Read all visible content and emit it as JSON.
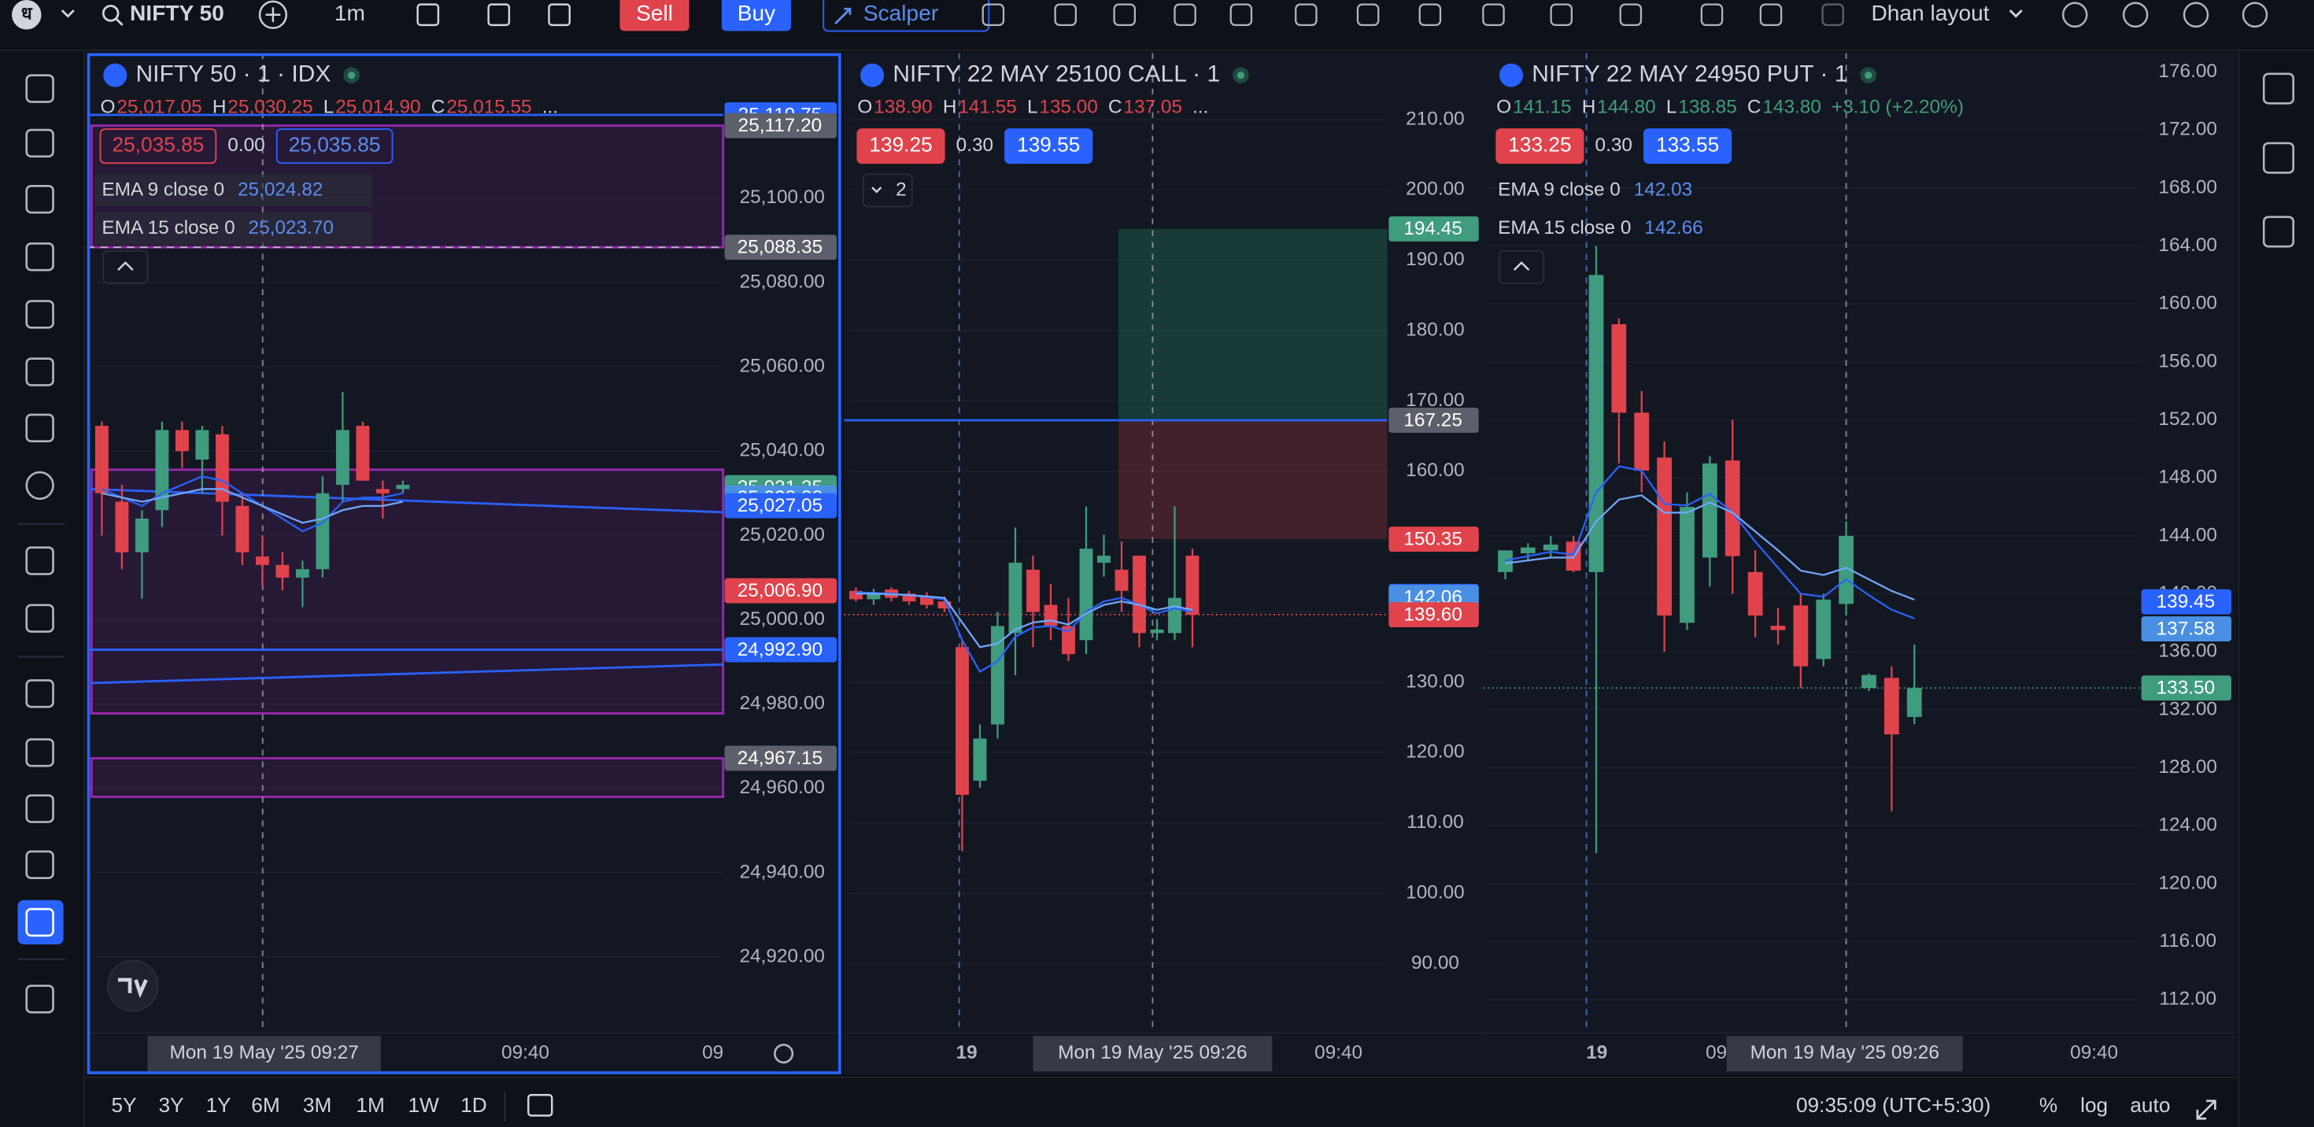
{
  "toolbar": {
    "logo": "ध",
    "symbol": "NIFTY 50",
    "interval": "1m",
    "sell": "Sell",
    "buy": "Buy",
    "scalper": "Scalper",
    "layout": "Dhan layout"
  },
  "panels": [
    {
      "title": "NIFTY 50 · 1 · IDX",
      "ohlc": [
        {
          "label": "O",
          "value": "25,017.05"
        },
        {
          "label": "H",
          "value": "25,030.25"
        },
        {
          "label": "L",
          "value": "25,014.90"
        },
        {
          "label": "C",
          "value": "25,015.55"
        }
      ],
      "ohlc_color": "#e0434c",
      "ohlc_more": "...",
      "sell_price": "25,035.85",
      "spread": "0.00",
      "buy_price": "25,035.85",
      "indicators": [
        {
          "name": "EMA 9 close 0",
          "value": "25,024.82"
        },
        {
          "name": "EMA 15 close 0",
          "value": "25,023.70"
        }
      ],
      "ylim": [
        24902,
        25133
      ],
      "yticks": [
        {
          "value": 25100,
          "label": "25,100.00"
        },
        {
          "value": 25080,
          "label": "25,080.00"
        },
        {
          "value": 25060,
          "label": "25,060.00"
        },
        {
          "value": 25040,
          "label": "25,040.00"
        },
        {
          "value": 25020,
          "label": "25,020.00"
        },
        {
          "value": 25000,
          "label": "25,000.00"
        },
        {
          "value": 24980,
          "label": "24,980.00"
        },
        {
          "value": 24960,
          "label": "24,960.00"
        },
        {
          "value": 24940,
          "label": "24,940.00"
        },
        {
          "value": 24920,
          "label": "24,920.00"
        }
      ],
      "zones": [
        {
          "from": 25117.2,
          "to": 25088.35
        },
        {
          "from": 25035.6,
          "to": 24977.8
        },
        {
          "from": 24967.15,
          "to": 24958
        }
      ],
      "zone_color": "#9c27b0",
      "trend_lines": [
        {
          "from": 24985,
          "to": 24989.4
        },
        {
          "from": 25031,
          "to": 25025.5
        }
      ],
      "trend_color": "#2962ff",
      "price_tags": [
        {
          "value": 25119.75,
          "label": "25,119.75",
          "color": "#2962ff",
          "line": "solid",
          "line_color": "#2962ff"
        },
        {
          "value": 25117.2,
          "label": "25,117.20",
          "color": "#5d606b"
        },
        {
          "value": 25088.35,
          "label": "25,088.35",
          "color": "#5d606b",
          "line": "dashed",
          "line_color": "#b2b5be"
        },
        {
          "value": 25031.35,
          "label": "25,031.35",
          "color": "#3f9c7e"
        },
        {
          "value": 25028.88,
          "label": "25,028.88",
          "color": "#4a90e2"
        },
        {
          "value": 25027.05,
          "label": "25,027.05",
          "color": "#2962ff"
        },
        {
          "value": 25006.9,
          "label": "25,006.90",
          "color": "#e0434c"
        },
        {
          "value": 24992.9,
          "label": "24,992.90",
          "color": "#2962ff",
          "line": "solid",
          "line_color": "#2962ff"
        },
        {
          "value": 24967.15,
          "label": "24,967.15",
          "color": "#5d606b"
        }
      ],
      "x_labels": [
        "09:40",
        "09"
      ],
      "crosshair_time": "Mon 19 May '25  09:27",
      "up_color": "#3f9c7e",
      "down_color": "#e0434c",
      "candles": {
        "open": [
          25046,
          25028,
          25016,
          25026,
          25045,
          25038,
          25044,
          25027,
          25015,
          25013,
          25010,
          25012,
          25032,
          25046,
          25031,
          25031
        ],
        "high": [
          25047,
          25032,
          25026,
          25047,
          25047,
          25046,
          25046,
          25030,
          25020,
          25016,
          25014,
          25034,
          25054,
          25047,
          25033,
          25033
        ],
        "low": [
          25020,
          25012,
          25005,
          25022,
          25036,
          25030,
          25020,
          25013,
          25008,
          25007,
          25003,
          25010,
          25028,
          25033,
          25024,
          25030
        ],
        "close": [
          25030,
          25016,
          25024,
          25045,
          25040,
          25045,
          25028,
          25016,
          25013,
          25010,
          25012,
          25030,
          25045,
          25033,
          25030,
          25032
        ]
      },
      "ema_lines": [
        {
          "color": "#2962ff",
          "values": [
            25031,
            25029,
            25027,
            25030,
            25032,
            25034,
            25033,
            25030,
            25027,
            25024,
            25021,
            25023,
            25028,
            25029,
            25029,
            25030
          ]
        },
        {
          "color": "#6fa8ff",
          "values": [
            25030,
            25029,
            25028,
            25029,
            25030,
            25031,
            25031,
            25029,
            25027,
            25025,
            25023,
            25024,
            25026,
            25027,
            25027,
            25028
          ]
        }
      ]
    },
    {
      "title": "NIFTY 22 MAY 25100 CALL · 1",
      "ohlc": [
        {
          "label": "O",
          "value": "138.90"
        },
        {
          "label": "H",
          "value": "141.55"
        },
        {
          "label": "L",
          "value": "135.00"
        },
        {
          "label": "C",
          "value": "137.05"
        }
      ],
      "ohlc_color": "#e0434c",
      "ohlc_more": "...",
      "sell_price": "139.25",
      "spread": "0.30",
      "buy_price": "139.55",
      "collapsed_count": "2",
      "ylim": [
        80.15,
        218.6
      ],
      "yticks": [
        {
          "value": 210,
          "label": "210.00"
        },
        {
          "value": 200,
          "label": "200.00"
        },
        {
          "value": 190,
          "label": "190.00"
        },
        {
          "value": 180,
          "label": "180.00"
        },
        {
          "value": 170,
          "label": "170.00"
        },
        {
          "value": 160,
          "label": "160.00"
        },
        {
          "value": 150,
          "label": "150.00"
        },
        {
          "value": 140,
          "label": "140.00"
        },
        {
          "value": 130,
          "label": "130.00"
        },
        {
          "value": 120,
          "label": "120.00"
        },
        {
          "value": 110,
          "label": "110.00"
        },
        {
          "value": 100,
          "label": "100.00"
        },
        {
          "value": 90,
          "label": "90.00"
        }
      ],
      "price_tags": [
        {
          "value": 194.45,
          "label": "194.45",
          "color": "#3f9c7e"
        },
        {
          "value": 167.25,
          "label": "167.25",
          "color": "#5d606b",
          "line": "solid",
          "line_color": "#2962ff"
        },
        {
          "value": 150.35,
          "label": "150.35",
          "color": "#e0434c"
        },
        {
          "value": 142.21,
          "label": "142.21",
          "color": "#2962ff"
        },
        {
          "value": 142.06,
          "label": "142.06",
          "color": "#4a90e2"
        },
        {
          "value": 139.6,
          "label": "139.60",
          "color": "#e0434c",
          "line": "dotted",
          "line_color": "#e0434c"
        }
      ],
      "x_labels": [
        "19",
        "09:40"
      ],
      "crosshair_time": "Mon 19 May '25  09:26",
      "up_color": "#3f9c7e",
      "down_color": "#e0434c",
      "candles": {
        "open": [
          143.0,
          141.8,
          143.2,
          142.6,
          142.2,
          141.5,
          135,
          116,
          124,
          137,
          146,
          141,
          138,
          136,
          147,
          146,
          148,
          137,
          137,
          148
        ],
        "high": [
          143.5,
          143.3,
          143.5,
          143.0,
          142.8,
          142.2,
          136,
          124,
          140,
          152,
          148,
          144,
          142,
          155,
          151,
          150,
          148,
          139,
          155,
          149
        ],
        "low": [
          141.5,
          141.0,
          141.5,
          141.0,
          140.5,
          140.0,
          106,
          115,
          122,
          131,
          135,
          136,
          133,
          134,
          145,
          140,
          135,
          136,
          136,
          135
        ],
        "close": [
          141.8,
          142.8,
          142.0,
          141.5,
          141.0,
          140.5,
          114,
          122,
          138,
          147,
          140,
          138,
          134,
          149,
          148,
          143,
          137,
          137.5,
          142,
          139.6
        ]
      },
      "ema_lines": [
        {
          "color": "#2962ff",
          "values": [
            142.8,
            142.7,
            142.6,
            142.4,
            142.1,
            141.8,
            136.0,
            131.5,
            133.0,
            136.5,
            137.8,
            138.0,
            137.2,
            140.0,
            141.5,
            142.0,
            141.0,
            139.8,
            140.5,
            140.0
          ]
        },
        {
          "color": "#6fa8ff",
          "values": [
            142.6,
            142.6,
            142.5,
            142.4,
            142.2,
            142.0,
            138.5,
            135.0,
            135.5,
            137.5,
            138.5,
            138.8,
            138.2,
            139.8,
            141.0,
            141.5,
            141.0,
            140.3,
            140.8,
            140.3
          ]
        }
      ]
    },
    {
      "title": "NIFTY 22 MAY 24950 PUT · 1",
      "ohlc": [
        {
          "label": "O",
          "value": "141.15"
        },
        {
          "label": "H",
          "value": "144.80"
        },
        {
          "label": "L",
          "value": "138.85"
        },
        {
          "label": "C",
          "value": "143.80"
        }
      ],
      "ohlc_color": "#3f9c7e",
      "change": "+3.10 (+2.20%)",
      "sell_price": "133.25",
      "spread": "0.30",
      "buy_price": "133.55",
      "indicators": [
        {
          "name": "EMA 9 close 0",
          "value": "142.03"
        },
        {
          "name": "EMA 15 close 0",
          "value": "142.66"
        }
      ],
      "ylim": [
        109.7,
        176.9
      ],
      "yticks": [
        {
          "value": 176,
          "label": "176.00"
        },
        {
          "value": 172,
          "label": "172.00"
        },
        {
          "value": 168,
          "label": "168.00"
        },
        {
          "value": 164,
          "label": "164.00"
        },
        {
          "value": 160,
          "label": "160.00"
        },
        {
          "value": 156,
          "label": "156.00"
        },
        {
          "value": 152,
          "label": "152.00"
        },
        {
          "value": 148,
          "label": "148.00"
        },
        {
          "value": 144,
          "label": "144.00"
        },
        {
          "value": 140,
          "label": "140.00"
        },
        {
          "value": 136,
          "label": "136.00"
        },
        {
          "value": 132,
          "label": "132.00"
        },
        {
          "value": 128,
          "label": "128.00"
        },
        {
          "value": 124,
          "label": "124.00"
        },
        {
          "value": 120,
          "label": "120.00"
        },
        {
          "value": 116,
          "label": "116.00"
        },
        {
          "value": 112,
          "label": "112.00"
        }
      ],
      "price_tags": [
        {
          "value": 139.45,
          "label": "139.45",
          "color": "#2962ff"
        },
        {
          "value": 137.58,
          "label": "137.58",
          "color": "#4a90e2"
        },
        {
          "value": 133.5,
          "label": "133.50",
          "color": "#3f9c7e",
          "line": "dotted",
          "line_color": "#3f9c7e"
        }
      ],
      "x_labels": [
        "19",
        "09",
        "09:40"
      ],
      "crosshair_time": "Mon 19 May '25  09:26",
      "up_color": "#3f9c7e",
      "down_color": "#e0434c",
      "candles": {
        "open": [
          141.5,
          142.8,
          143.0,
          143.6,
          141.5,
          158.6,
          152.5,
          149.4,
          138.0,
          142.5,
          149.2,
          141.5,
          137.8,
          139.2,
          135.5,
          139.3,
          133.5,
          134.2,
          131.5
        ],
        "high": [
          143.0,
          143.5,
          144.0,
          144.0,
          164.0,
          159.0,
          154.0,
          150.5,
          147.0,
          149.5,
          152.0,
          143.0,
          139.0,
          140.0,
          140.0,
          145.0,
          134.5,
          135.0,
          136.5
        ],
        "low": [
          141.0,
          142.3,
          142.5,
          141.5,
          122.1,
          149.0,
          147.0,
          136.0,
          137.5,
          140.5,
          140.0,
          137.0,
          136.5,
          133.5,
          135.0,
          138.5,
          133.3,
          125.0,
          131.0
        ],
        "close": [
          143.0,
          143.2,
          143.4,
          141.6,
          162.0,
          152.5,
          148.5,
          138.5,
          146.0,
          149.0,
          142.6,
          138.5,
          137.5,
          135.0,
          139.6,
          144.0,
          134.4,
          130.3,
          133.5
        ]
      },
      "ema_lines": [
        {
          "color": "#2962ff",
          "values": [
            142.3,
            142.6,
            142.9,
            142.7,
            147.0,
            148.8,
            148.5,
            146.2,
            146.1,
            146.9,
            145.6,
            143.6,
            141.8,
            140.0,
            139.8,
            141.0,
            139.9,
            138.9,
            138.3
          ]
        },
        {
          "color": "#6fa8ff",
          "values": [
            142.1,
            142.3,
            142.5,
            142.5,
            145.0,
            146.5,
            146.8,
            145.6,
            145.6,
            146.3,
            145.6,
            144.3,
            143.0,
            141.6,
            141.3,
            141.8,
            141.0,
            140.2,
            139.6
          ]
        }
      ]
    }
  ],
  "bottom_bar": {
    "ranges": [
      "5Y",
      "3Y",
      "1Y",
      "6M",
      "3M",
      "1M",
      "1W",
      "1D"
    ],
    "clock": "09:35:09 (UTC+5:30)",
    "percent": "%",
    "log": "log",
    "auto": "auto"
  }
}
